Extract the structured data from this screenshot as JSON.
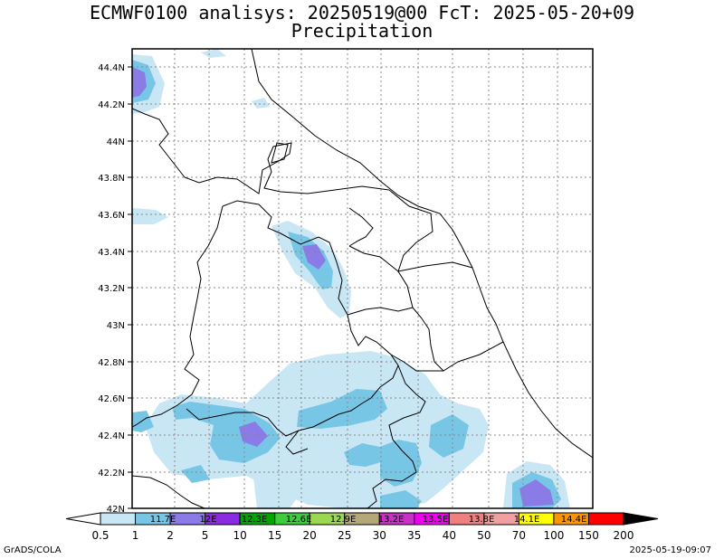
{
  "title": {
    "line1": "ECMWF0100 analisys: 20250519@00 FcT: 2025-05-20+09",
    "line2": "Precipitation"
  },
  "axes": {
    "y_ticks": [
      "44.4N",
      "44.2N",
      "44N",
      "43.8N",
      "43.6N",
      "43.4N",
      "43.2N",
      "43N",
      "42.8N",
      "42.6N",
      "42.4N",
      "42.2N",
      "42N"
    ],
    "x_ticks": [
      "11.7E",
      "12E",
      "12.3E",
      "12.6E",
      "12.9E",
      "13.2E",
      "13.5E",
      "13.8E",
      "14.1E",
      "14.4E"
    ]
  },
  "colorbar": {
    "levels": [
      "0.5",
      "1",
      "2",
      "5",
      "10",
      "15",
      "20",
      "25",
      "30",
      "35",
      "40",
      "50",
      "70",
      "100",
      "150",
      "200"
    ],
    "colors": [
      "#c9e6f5",
      "#78c6e6",
      "#8a7be6",
      "#8a2be2",
      "#00a600",
      "#3ccc3c",
      "#9ad850",
      "#b4a878",
      "#c830c8",
      "#f000f0",
      "#f08080",
      "#f0a0a0",
      "#ffff00",
      "#ff9600",
      "#ff0000",
      "#9b0000",
      "#000000"
    ]
  },
  "colors": {
    "light_blue": "#c9e6f5",
    "mid_blue": "#78c6e6",
    "purple": "#8a7be6",
    "grid": "#888888",
    "outline": "#000000"
  },
  "footer": {
    "left": "GrADS/COLA",
    "right": "2025-05-19-09:07"
  }
}
